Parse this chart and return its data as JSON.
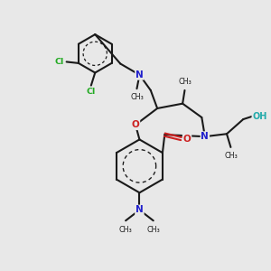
{
  "bg_color": "#e8e8e8",
  "bond_color": "#1a1a1a",
  "bond_width": 1.5,
  "N_color": "#2020cc",
  "O_color": "#cc2020",
  "Cl_color": "#22aa22",
  "H_color": "#22aaaa",
  "figsize": [
    3.0,
    3.0
  ],
  "dpi": 100,
  "xlim": [
    0,
    10
  ],
  "ylim": [
    0,
    10
  ]
}
